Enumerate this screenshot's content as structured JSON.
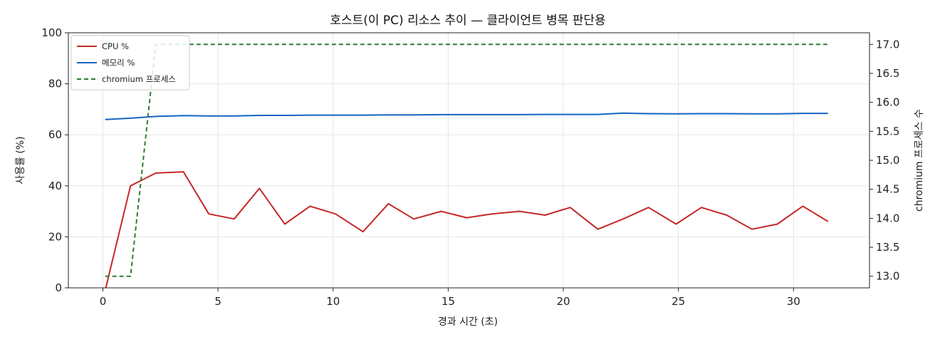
{
  "chart_data": {
    "type": "line",
    "title": "호스트(이 PC) 리소스 추이 — 클라이언트 병목 판단용",
    "xlabel": "경과 시간 (초)",
    "ylabel": "사용률 (%)",
    "y2label": "chromium 프로세스 수",
    "xlim": [
      -1.5,
      33.3
    ],
    "ylim": [
      0,
      100
    ],
    "y2lim": [
      12.8,
      17.2
    ],
    "xticks": [
      "0",
      "5",
      "10",
      "15",
      "20",
      "25",
      "30"
    ],
    "yticks": [
      "0",
      "20",
      "40",
      "60",
      "80",
      "100"
    ],
    "y2ticks": [
      "13.0",
      "13.5",
      "14.0",
      "14.5",
      "15.0",
      "15.5",
      "16.0",
      "16.5",
      "17.0"
    ],
    "grid": true,
    "legend_position": "top-left",
    "series": [
      {
        "name": "CPU %",
        "color": "#c62828",
        "axis": "left",
        "style": "solid",
        "x": [
          0.1,
          1.2,
          2.3,
          3.5,
          4.6,
          5.7,
          6.8,
          7.9,
          9.0,
          10.1,
          11.3,
          12.4,
          13.5,
          14.7,
          15.8,
          16.9,
          18.1,
          19.2,
          20.3,
          21.5,
          22.6,
          23.7,
          24.9,
          26.0,
          27.1,
          28.2,
          29.3,
          30.4,
          31.5
        ],
        "y": [
          -1,
          40,
          45,
          45.5,
          29,
          27,
          39,
          25,
          32,
          29,
          22,
          33,
          27,
          30,
          27.5,
          29,
          30,
          28.5,
          31.5,
          23,
          27,
          31.5,
          25,
          31.5,
          28.5,
          23,
          25,
          32,
          26
        ]
      },
      {
        "name": "메모리 %",
        "color": "#1565c0",
        "axis": "left",
        "style": "solid",
        "x": [
          0.1,
          1.2,
          2.3,
          3.5,
          4.6,
          5.7,
          6.8,
          7.9,
          9.0,
          10.1,
          11.3,
          12.4,
          13.5,
          14.7,
          15.8,
          16.9,
          18.1,
          19.2,
          20.3,
          21.5,
          22.6,
          23.7,
          24.9,
          26.0,
          27.1,
          28.2,
          29.3,
          30.4,
          31.5
        ],
        "y": [
          66,
          66.5,
          67.2,
          67.5,
          67.4,
          67.4,
          67.6,
          67.6,
          67.7,
          67.7,
          67.7,
          67.8,
          67.8,
          67.9,
          67.9,
          67.9,
          67.9,
          68.0,
          68.0,
          68.0,
          68.5,
          68.3,
          68.2,
          68.3,
          68.3,
          68.2,
          68.2,
          68.4,
          68.4
        ]
      },
      {
        "name": "chromium 프로세스",
        "color": "#2e7d32",
        "axis": "right",
        "style": "dashed",
        "x": [
          0.1,
          1.2,
          2.3,
          3.5,
          4.6,
          5.7,
          6.8,
          7.9,
          9.0,
          10.1,
          11.3,
          12.4,
          13.5,
          14.7,
          15.8,
          16.9,
          18.1,
          19.2,
          20.3,
          21.5,
          22.6,
          23.7,
          24.9,
          26.0,
          27.1,
          28.2,
          29.3,
          30.4,
          31.5
        ],
        "y": [
          13,
          13,
          17,
          17,
          17,
          17,
          17,
          17,
          17,
          17,
          17,
          17,
          17,
          17,
          17,
          17,
          17,
          17,
          17,
          17,
          17,
          17,
          17,
          17,
          17,
          17,
          17,
          17,
          17
        ]
      }
    ]
  }
}
